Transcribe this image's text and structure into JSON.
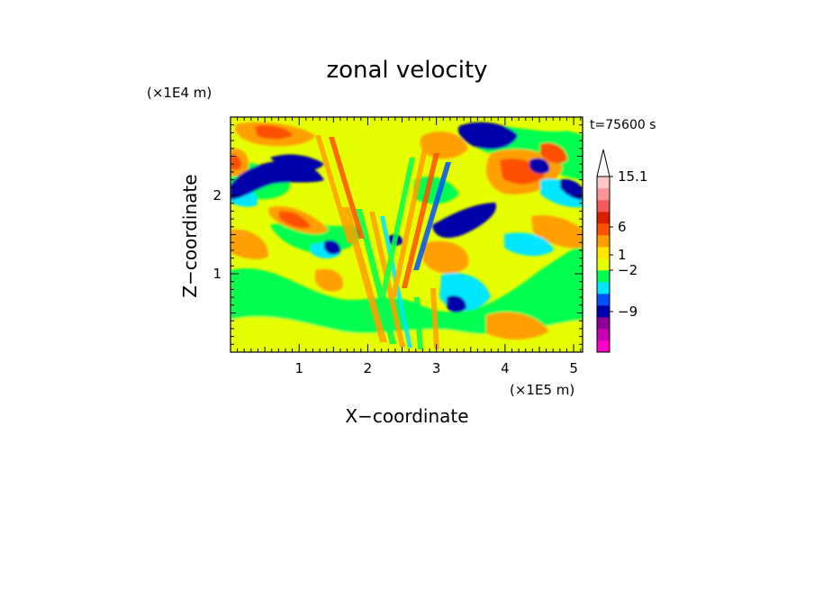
{
  "chart_data": {
    "type": "heatmap",
    "title": "zonal velocity",
    "xlabel": "X−coordinate",
    "ylabel": "Z−coordinate",
    "x_unit": "(×1E5 m)",
    "y_unit": "(×1E4 m)",
    "time_label": "t=75600 s",
    "xlim": [
      0,
      5.13
    ],
    "ylim": [
      0,
      3.0
    ],
    "x_ticks": [
      "1",
      "2",
      "3",
      "4",
      "5"
    ],
    "y_ticks": [
      "1",
      "2"
    ],
    "colorbar": {
      "labels": [
        "15.1",
        "6",
        "1",
        "−2",
        "−9"
      ],
      "label_values": [
        15.1,
        6,
        1,
        -2,
        -9
      ],
      "colors": [
        "#ff00c8",
        "#c800b4",
        "#8c0096",
        "#0000aa",
        "#0050ff",
        "#00e6ff",
        "#00ff50",
        "#e6ff00",
        "#ffe600",
        "#ffa000",
        "#ff5000",
        "#dc1e00",
        "#f05a5a",
        "#ff9696",
        "#ffc8c8"
      ],
      "arrow_top": true
    }
  }
}
